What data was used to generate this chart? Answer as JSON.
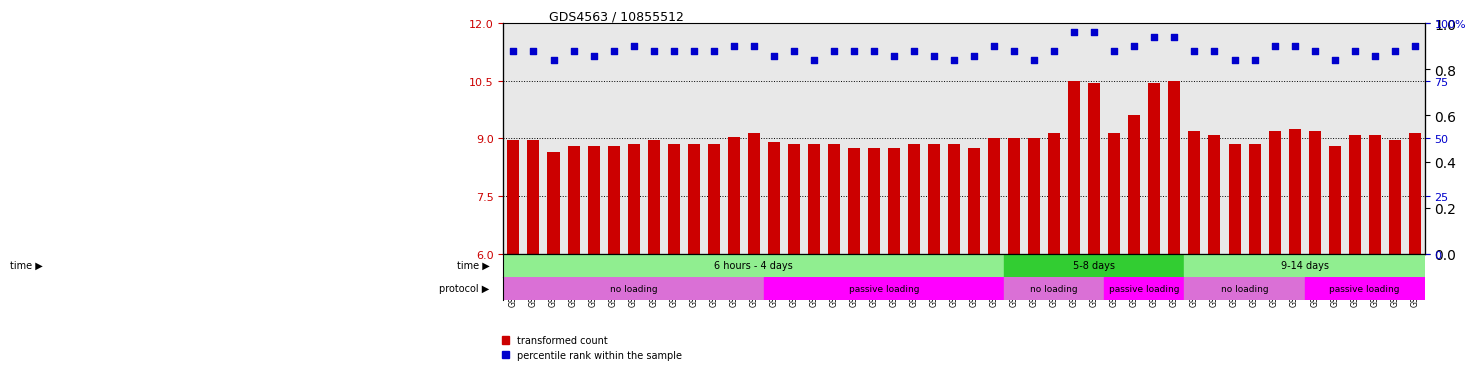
{
  "title": "GDS4563 / 10855512",
  "samples": [
    "GSM930471",
    "GSM930472",
    "GSM930473",
    "GSM930474",
    "GSM930475",
    "GSM930476",
    "GSM930477",
    "GSM930478",
    "GSM930479",
    "GSM930480",
    "GSM930481",
    "GSM930482",
    "GSM930483",
    "GSM930494",
    "GSM930495",
    "GSM930496",
    "GSM930497",
    "GSM930498",
    "GSM930499",
    "GSM930500",
    "GSM930501",
    "GSM930502",
    "GSM930503",
    "GSM930504",
    "GSM930505",
    "GSM930506",
    "GSM930484",
    "GSM930485",
    "GSM930486",
    "GSM930487",
    "GSM930507",
    "GSM930508",
    "GSM930509",
    "GSM930510",
    "GSM930488",
    "GSM930489",
    "GSM930490",
    "GSM930491",
    "GSM930492",
    "GSM930493",
    "GSM930511",
    "GSM930512",
    "GSM930513",
    "GSM930514",
    "GSM930515",
    "GSM930516"
  ],
  "bar_values": [
    8.95,
    8.95,
    8.65,
    8.8,
    8.8,
    8.8,
    8.85,
    8.95,
    8.85,
    8.85,
    8.85,
    9.05,
    9.15,
    8.9,
    8.85,
    8.85,
    8.85,
    8.75,
    8.75,
    8.75,
    8.85,
    8.85,
    8.85,
    8.75,
    9.0,
    9.0,
    9.0,
    9.15,
    10.5,
    10.45,
    9.15,
    9.6,
    10.45,
    10.5,
    9.2,
    9.1,
    8.85,
    8.85,
    9.2,
    9.25,
    9.2,
    8.8,
    9.1,
    9.1,
    8.95,
    9.15
  ],
  "dot_values": [
    88,
    88,
    84,
    88,
    86,
    88,
    90,
    88,
    88,
    88,
    88,
    90,
    90,
    86,
    88,
    84,
    88,
    88,
    88,
    86,
    88,
    86,
    84,
    86,
    90,
    88,
    84,
    88,
    96,
    96,
    88,
    90,
    94,
    94,
    88,
    88,
    84,
    84,
    90,
    90,
    88,
    84,
    88,
    86,
    88,
    90
  ],
  "ylim_left": [
    6,
    12
  ],
  "ylim_right": [
    0,
    100
  ],
  "yticks_left": [
    6,
    7.5,
    9,
    10.5,
    12
  ],
  "yticks_right": [
    0,
    25,
    50,
    75,
    100
  ],
  "bar_color": "#cc0000",
  "dot_color": "#0000cc",
  "time_groups": [
    {
      "label": "6 hours - 4 days",
      "start": 0,
      "end": 25,
      "color": "#90ee90"
    },
    {
      "label": "5-8 days",
      "start": 25,
      "end": 34,
      "color": "#32cd32"
    },
    {
      "label": "9-14 days",
      "start": 34,
      "end": 46,
      "color": "#90ee90"
    }
  ],
  "protocol_groups": [
    {
      "label": "no loading",
      "start": 0,
      "end": 13,
      "color": "#da70d6"
    },
    {
      "label": "passive loading",
      "start": 13,
      "end": 25,
      "color": "#ff00ff"
    },
    {
      "label": "no loading",
      "start": 25,
      "end": 30,
      "color": "#da70d6"
    },
    {
      "label": "passive loading",
      "start": 30,
      "end": 34,
      "color": "#ff00ff"
    },
    {
      "label": "no loading",
      "start": 34,
      "end": 40,
      "color": "#da70d6"
    },
    {
      "label": "passive loading",
      "start": 40,
      "end": 46,
      "color": "#ff00ff"
    }
  ],
  "legend_items": [
    {
      "label": "transformed count",
      "color": "#cc0000",
      "marker": "s"
    },
    {
      "label": "percentile rank within the sample",
      "color": "#0000cc",
      "marker": "s"
    }
  ],
  "background_color": "#f0f0f0",
  "time_label": "time",
  "protocol_label": "protocol"
}
